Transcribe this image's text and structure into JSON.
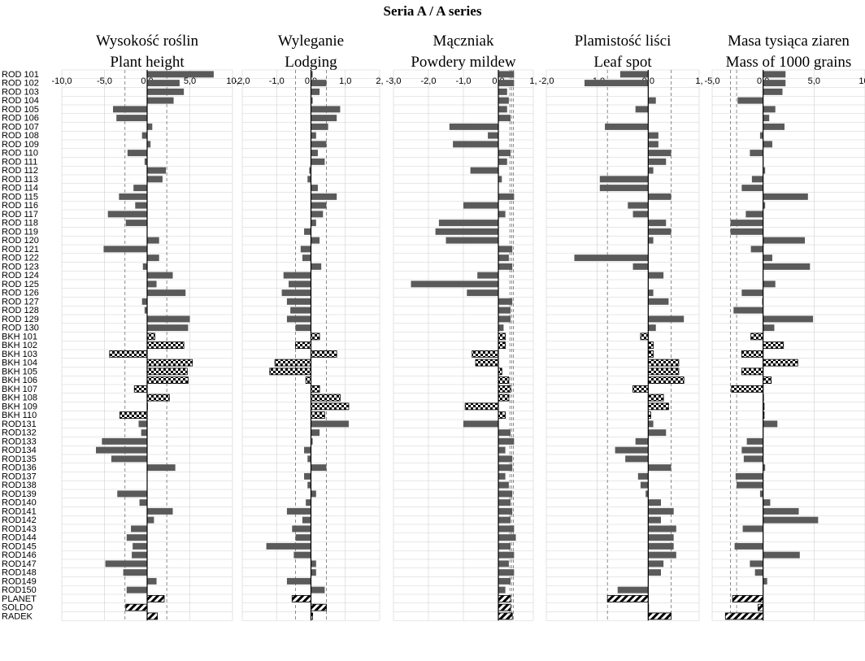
{
  "chart_data": {
    "type": "bar",
    "title": "Seria A / A series",
    "categories": [
      "ROD 101",
      "ROD 102",
      "ROD 103",
      "ROD 104",
      "ROD 105",
      "ROD 106",
      "ROD 107",
      "ROD 108",
      "ROD 109",
      "ROD 110",
      "ROD 111",
      "ROD 112",
      "ROD 113",
      "ROD 114",
      "ROD 115",
      "ROD 116",
      "ROD 117",
      "ROD 118",
      "ROD 119",
      "ROD 120",
      "ROD 121",
      "ROD 122",
      "ROD 123",
      "ROD 124",
      "ROD 125",
      "ROD 126",
      "ROD 127",
      "ROD 128",
      "ROD 129",
      "ROD 130",
      "BKH 101",
      "BKH 102",
      "BKH 103",
      "BKH 104",
      "BKH 105",
      "BKH 106",
      "BKH 107",
      "BKH 108",
      "BKH 109",
      "BKH 110",
      "ROD131",
      "ROD132",
      "ROD133",
      "ROD134",
      "ROD135",
      "ROD136",
      "ROD137",
      "ROD138",
      "ROD139",
      "ROD140",
      "ROD141",
      "ROD142",
      "ROD143",
      "ROD144",
      "ROD145",
      "ROD146",
      "ROD147",
      "ROD148",
      "ROD149",
      "ROD150",
      "PLANET",
      "SOLDO",
      "RADEK"
    ],
    "panels": [
      {
        "title": "Wysokość roślin",
        "subtitle": "Plant height",
        "xlim": [
          -10,
          10
        ],
        "ticks": [
          "-10,0",
          "-5,0",
          "0,0",
          "5,0",
          "10,"
        ],
        "tick_values": [
          -10,
          -5,
          0,
          5,
          10
        ],
        "ref_lines": [
          -2.6,
          2.3
        ],
        "values": [
          7.8,
          3.8,
          4.3,
          3.1,
          -4,
          -3.6,
          0.6,
          -0.6,
          0.4,
          -2.3,
          -0.3,
          2.2,
          1.8,
          -1.6,
          -3.3,
          -1.4,
          -4.6,
          -2.5,
          0,
          1.4,
          -5.1,
          1.4,
          -0.5,
          3,
          1.1,
          4.5,
          -0.6,
          -0.3,
          5,
          4.8,
          0.9,
          4.3,
          -4.4,
          5.3,
          4.7,
          4.8,
          -1.5,
          2.6,
          0,
          -3.2,
          -1,
          -0.7,
          -5.3,
          -6,
          -4.2,
          3.3,
          0,
          0,
          -3.5,
          -0.9,
          3,
          0.8,
          -1.9,
          -2.4,
          -1.7,
          -1.8,
          -4.9,
          -2.8,
          1.1,
          -2.4,
          2,
          -2.5,
          1.2
        ]
      },
      {
        "title": "Wyleganie",
        "subtitle": "Lodging",
        "xlim": [
          -2,
          2
        ],
        "ticks": [
          "-2,0",
          "-1,0",
          "0,0",
          "1,0",
          "2,"
        ],
        "tick_values": [
          -2,
          -1,
          0,
          1,
          2
        ],
        "ref_lines": [
          -0.45,
          0.45
        ],
        "values": [
          0.05,
          0.45,
          0.25,
          0.05,
          0.85,
          0.75,
          0.5,
          0.15,
          0.45,
          0.2,
          0.4,
          -0.05,
          -0.1,
          0.2,
          0.75,
          0.45,
          0.35,
          0.15,
          -0.2,
          0.25,
          -0.3,
          -0.25,
          0.3,
          -0.8,
          -0.65,
          -0.85,
          -0.7,
          -0.6,
          -0.7,
          -0.45,
          0.25,
          -0.45,
          0.75,
          -1.05,
          -1.2,
          -0.15,
          0.25,
          0.85,
          1.1,
          0.4,
          1.1,
          0.25,
          0.05,
          -0.2,
          -0.1,
          0.45,
          -0.2,
          -0.1,
          0.15,
          -0.15,
          -0.7,
          -0.25,
          -0.55,
          -0.45,
          -1.3,
          -0.5,
          0.15,
          0.15,
          -0.7,
          0.4,
          -0.55,
          0.45,
          0.05
        ]
      },
      {
        "title": "Mączniak",
        "subtitle": "Powdery mildew",
        "xlim": [
          -3,
          1
        ],
        "ticks": [
          "-3,0",
          "-2,0",
          "-1,0",
          "0,0",
          "1,"
        ],
        "tick_values": [
          -3,
          -2,
          -1,
          0,
          1
        ],
        "ref_lines": [
          0.33,
          0.38,
          0.43
        ],
        "values": [
          0.45,
          0.45,
          0.25,
          0.3,
          0.25,
          0.35,
          -1.4,
          -0.3,
          -1.3,
          0.35,
          0.25,
          -0.8,
          0.1,
          0,
          0.45,
          -1,
          0.2,
          -1.7,
          -1.8,
          -1.5,
          0.4,
          0.3,
          0.4,
          -0.6,
          -2.5,
          -0.9,
          0.4,
          0.35,
          0.35,
          0.15,
          0.2,
          0.2,
          -0.75,
          -0.65,
          0.1,
          0.3,
          0.35,
          0.3,
          -0.95,
          0.2,
          -1,
          0.35,
          0.45,
          0.2,
          0.4,
          0.4,
          0.2,
          0.3,
          0.4,
          0.35,
          0.4,
          0.35,
          0.45,
          0.5,
          0.35,
          0.45,
          0.3,
          0.45,
          0.35,
          0.2,
          0.35,
          0.35,
          0.4
        ]
      },
      {
        "title": "Plamistość liści",
        "subtitle": "Leaf spot",
        "xlim": [
          -2,
          1
        ],
        "ticks": [
          "-2,0",
          "-1,0",
          "0,0",
          "1,"
        ],
        "tick_values": [
          -2,
          -1,
          0,
          1
        ],
        "ref_lines": [
          -0.8,
          0.45
        ],
        "values": [
          -0.55,
          -1.25,
          0,
          0.15,
          -0.25,
          0,
          -0.85,
          0.2,
          0.2,
          0.45,
          0.35,
          0.1,
          -0.95,
          -0.95,
          0.45,
          -0.4,
          -0.3,
          0.35,
          0.45,
          0.1,
          0,
          -1.45,
          -0.3,
          0.3,
          0,
          0.1,
          0.4,
          0,
          0.7,
          0.15,
          -0.15,
          0.1,
          0.1,
          0.6,
          0.6,
          0.7,
          -0.3,
          0.3,
          0.4,
          0.05,
          0.1,
          0.35,
          -0.25,
          -0.65,
          -0.45,
          0.45,
          -0.2,
          -0.15,
          -0.05,
          0.25,
          0.5,
          0.25,
          0.55,
          0.5,
          0.5,
          0.55,
          0.3,
          0.25,
          0,
          -0.6,
          -0.8,
          0,
          0.45
        ]
      },
      {
        "title": "Masa tysiąca ziaren",
        "subtitle": "Mass of 1000 grains",
        "xlim": [
          -5,
          10
        ],
        "ticks": [
          "-5,0",
          "0,0",
          "5,0",
          "10,"
        ],
        "tick_values": [
          -5,
          0,
          5,
          10
        ],
        "ref_lines": [
          -3.2,
          -2.6
        ],
        "values": [
          2.2,
          2.2,
          1.9,
          -2.5,
          1.2,
          0.6,
          2.1,
          -0.3,
          0.9,
          -1.3,
          0,
          0.2,
          -1.1,
          -2.1,
          4.4,
          0.2,
          -1.7,
          -3.2,
          -3.2,
          4.1,
          -1.2,
          0.9,
          4.6,
          0,
          1.2,
          -2.1,
          -0.1,
          -2.9,
          4.9,
          1.1,
          -1.2,
          2,
          -2.1,
          3.4,
          -2.1,
          0.8,
          -3.1,
          0,
          0.1,
          0.1,
          1.4,
          0,
          -1.6,
          -2.1,
          -1.9,
          0.2,
          -2.7,
          -2.6,
          -0.3,
          0.7,
          3.5,
          5.4,
          -2,
          0,
          -2.8,
          3.6,
          -1.3,
          -0.8,
          0.4,
          0,
          -3,
          -0.5,
          -3.7
        ]
      }
    ],
    "highlighted_rows": {
      "checkered": [
        "BKH 101",
        "BKH 102",
        "BKH 103",
        "BKH 104",
        "BKH 105",
        "BKH 106",
        "BKH 107",
        "BKH 108",
        "BKH 109",
        "BKH 110"
      ],
      "hatched": [
        "PLANET",
        "SOLDO",
        "RADEK"
      ]
    },
    "colors": {
      "bar": "#5a5a5a",
      "grid": "#d0d0d0",
      "ref_line": "#808080",
      "zero_line": "#000000"
    }
  }
}
